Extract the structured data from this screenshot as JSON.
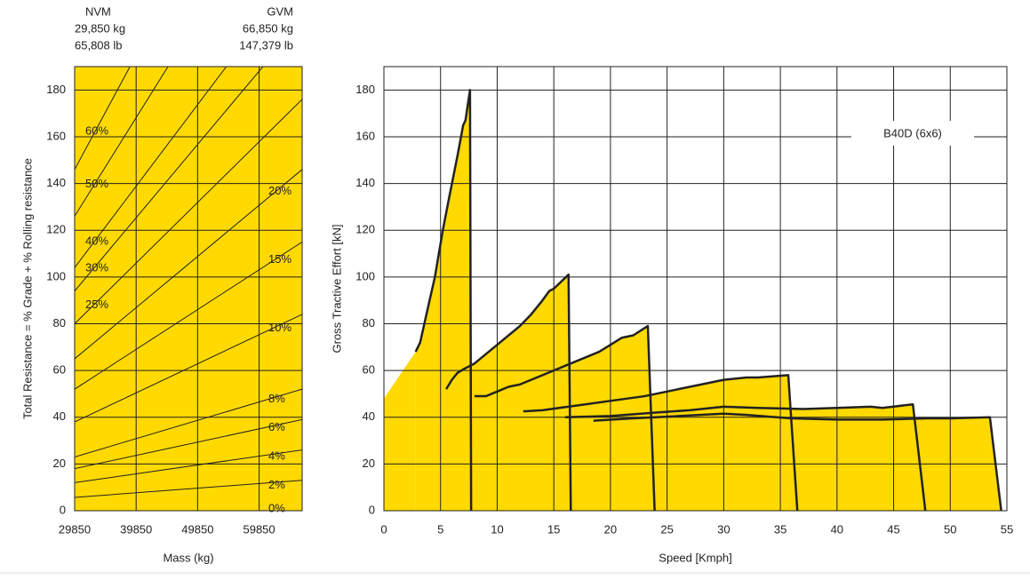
{
  "header": {
    "nvm": {
      "title": "NVM",
      "kg": "29,850 kg",
      "lb": "65,808 lb"
    },
    "gvm": {
      "title": "GVM",
      "kg": "66,850 kg",
      "lb": "147,379 lb"
    }
  },
  "chart_data": [
    {
      "type": "line",
      "xlabel": "Mass (kg)",
      "ylabel": "Total Resistance = % Grade + % Rolling resistance",
      "background": "#ffd900",
      "color": "#222222",
      "xlim": [
        29850,
        66850
      ],
      "ylim": [
        0,
        190
      ],
      "xticks": [
        29850,
        39850,
        49850,
        59850
      ],
      "yticks": [
        0,
        20,
        40,
        60,
        80,
        100,
        120,
        140,
        160,
        180
      ],
      "grid": true,
      "x": [
        29850,
        66850
      ],
      "series": [
        {
          "name": "0%",
          "values": [
            0,
            0
          ]
        },
        {
          "name": "2%",
          "values": [
            5.7,
            13
          ]
        },
        {
          "name": "4%",
          "values": [
            12,
            26
          ]
        },
        {
          "name": "6%",
          "values": [
            18,
            39
          ]
        },
        {
          "name": "8%",
          "values": [
            23,
            52
          ]
        },
        {
          "name": "10%",
          "values": [
            38,
            84
          ]
        },
        {
          "name": "15%",
          "values": [
            52,
            115
          ]
        },
        {
          "name": "20%",
          "values": [
            65,
            146
          ]
        },
        {
          "name": "25%",
          "values": [
            80,
            176
          ]
        },
        {
          "name": "30%",
          "values": [
            94,
            210
          ]
        },
        {
          "name": "40%",
          "values": [
            104,
            233
          ]
        },
        {
          "name": "50%",
          "values": [
            126,
            282
          ]
        },
        {
          "name": "60%",
          "values": [
            146,
            327
          ]
        }
      ]
    },
    {
      "type": "area",
      "xlabel": "Speed [Kmph]",
      "ylabel": "Gross Tractive Effort [kN]",
      "annotation": "B40D (6x6)",
      "fill": "#ffd900",
      "color": "#222222",
      "xlim": [
        0,
        55
      ],
      "ylim": [
        0,
        190
      ],
      "xticks": [
        0,
        5,
        10,
        15,
        20,
        25,
        30,
        35,
        40,
        45,
        50,
        55
      ],
      "yticks": [
        0,
        20,
        40,
        60,
        80,
        100,
        120,
        140,
        160,
        180
      ],
      "grid": true,
      "fill_area": {
        "x": [
          0,
          2.8
        ],
        "values": [
          48,
          68
        ]
      },
      "series": [
        {
          "x": [
            2.8,
            3.2,
            3.8,
            4.5,
            5.2,
            5.8,
            6.5,
            7.0,
            7.2,
            7.6,
            7.7
          ],
          "values": [
            68,
            72,
            85,
            100,
            120,
            135,
            152,
            165,
            167,
            180,
            0
          ]
        },
        {
          "x": [
            5.5,
            6,
            6.5,
            7.2,
            8,
            8.5,
            10,
            11,
            12,
            13,
            14,
            14.6,
            15,
            16.3,
            16.5
          ],
          "values": [
            52,
            56,
            59,
            61,
            63,
            65,
            71,
            75,
            79,
            84,
            90,
            94,
            95,
            101,
            0
          ]
        },
        {
          "x": [
            8,
            9,
            10,
            11,
            12,
            13,
            14,
            15,
            16,
            17,
            18,
            19,
            20,
            21,
            22,
            23.3,
            23.9
          ],
          "values": [
            49,
            49,
            51,
            53,
            54,
            56,
            58,
            60,
            62,
            64,
            66,
            68,
            71,
            74,
            75,
            79,
            0
          ]
        },
        {
          "x": [
            12.3,
            14,
            17,
            20,
            23,
            26,
            29,
            30,
            32,
            33,
            35.7,
            36.5
          ],
          "values": [
            42.5,
            43,
            45,
            47,
            49,
            52,
            55,
            56,
            57,
            57,
            58,
            0
          ]
        },
        {
          "x": [
            16,
            20,
            24,
            27,
            30,
            33,
            37,
            40,
            43,
            44,
            46.7,
            47.8
          ],
          "values": [
            40,
            40.5,
            42,
            43,
            44.5,
            44,
            43.5,
            44,
            44.5,
            44,
            45.5,
            0
          ]
        },
        {
          "x": [
            18.5,
            22,
            26,
            30,
            32,
            36,
            40,
            44,
            48,
            50,
            53.5,
            54.5
          ],
          "values": [
            38.5,
            39.5,
            40.5,
            41.5,
            41,
            39.5,
            39,
            39,
            39.5,
            39.5,
            40,
            0
          ]
        }
      ]
    }
  ]
}
